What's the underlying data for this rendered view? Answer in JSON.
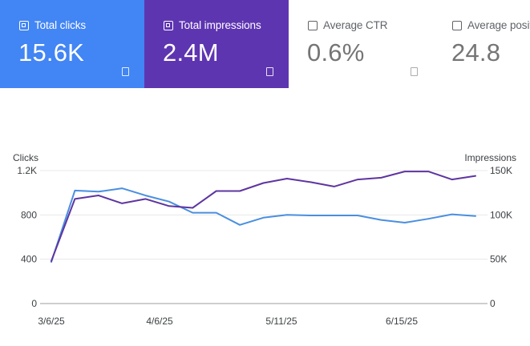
{
  "metrics": [
    {
      "key": "clicks",
      "label": "Total clicks",
      "value": "15.6K",
      "selected": true,
      "color": "#4285f4"
    },
    {
      "key": "impressions",
      "label": "Total impressions",
      "value": "2.4M",
      "selected": true,
      "color": "#5e35b1"
    },
    {
      "key": "ctr",
      "label": "Average CTR",
      "value": "0.6%",
      "selected": false,
      "color": "#ffffff"
    },
    {
      "key": "position",
      "label": "Average position",
      "value": "24.8",
      "selected": false,
      "color": "#ffffff"
    }
  ],
  "chart_data": {
    "type": "line",
    "left_axis_label": "Clicks",
    "right_axis_label": "Impressions",
    "left_ticks": [
      "0",
      "400",
      "800",
      "1.2K"
    ],
    "right_ticks": [
      "0",
      "50K",
      "100K",
      "150K"
    ],
    "left_ylim": [
      0,
      1200
    ],
    "right_ylim": [
      0,
      150000
    ],
    "x_ticks": [
      "3/6/25",
      "4/6/25",
      "5/11/25",
      "6/15/25"
    ],
    "series": [
      {
        "name": "Clicks",
        "axis": "left",
        "color": "#4a8fe0",
        "values": [
          375,
          1020,
          1010,
          1040,
          975,
          920,
          820,
          820,
          710,
          775,
          800,
          795,
          795,
          795,
          755,
          730,
          765,
          805,
          790
        ]
      },
      {
        "name": "Impressions",
        "axis": "right",
        "color": "#5e35a0",
        "values": [
          48000,
          118000,
          122000,
          113000,
          118000,
          110000,
          108000,
          127000,
          127000,
          136000,
          141000,
          137000,
          132000,
          140000,
          142000,
          149000,
          149000,
          140000,
          144000
        ]
      }
    ],
    "grid": true
  }
}
